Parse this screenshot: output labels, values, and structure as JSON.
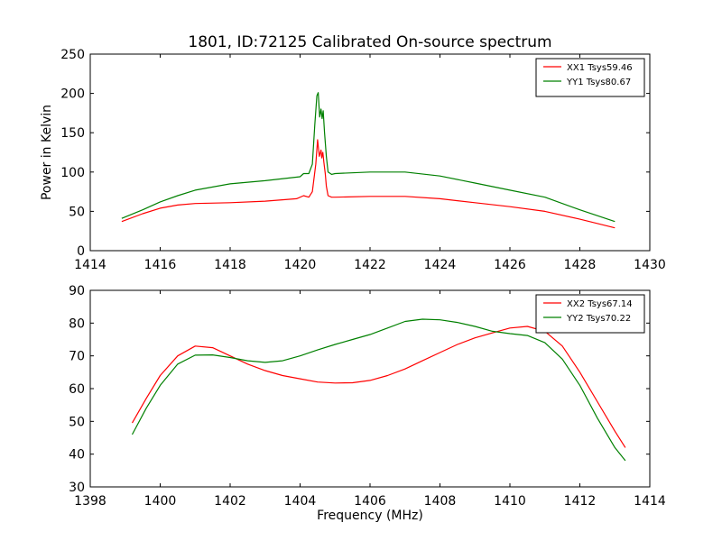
{
  "chart_data": [
    {
      "type": "line",
      "title": "1801, ID:72125 Calibrated On-source spectrum",
      "xlabel": "",
      "ylabel": "Power in Kelvin",
      "xlim": [
        1414,
        1430
      ],
      "ylim": [
        0,
        250
      ],
      "xticks": [
        1414,
        1416,
        1418,
        1420,
        1422,
        1424,
        1426,
        1428,
        1430
      ],
      "yticks": [
        0,
        50,
        100,
        150,
        200,
        250
      ],
      "grid": false,
      "legend_position": "top-right",
      "series": [
        {
          "name": "XX1 Tsys59.46",
          "color": "#ff0000",
          "x": [
            1414.9,
            1415.5,
            1416.0,
            1416.5,
            1417.0,
            1418.0,
            1419.0,
            1419.9,
            1420.1,
            1420.25,
            1420.35,
            1420.45,
            1420.5,
            1420.55,
            1420.6,
            1420.62,
            1420.65,
            1420.68,
            1420.72,
            1420.75,
            1420.8,
            1420.9,
            1421.0,
            1422.0,
            1423.0,
            1424.0,
            1425.0,
            1426.0,
            1427.0,
            1428.0,
            1429.0
          ],
          "y": [
            37,
            47,
            54,
            58,
            60,
            61,
            63,
            66,
            70,
            68,
            75,
            110,
            141,
            120,
            128,
            118,
            125,
            112,
            98,
            82,
            70,
            68,
            68,
            69,
            69,
            66,
            61,
            56,
            50,
            40,
            29
          ]
        },
        {
          "name": "YY1 Tsys80.67",
          "color": "#008000",
          "x": [
            1414.9,
            1415.5,
            1416.0,
            1416.5,
            1417.0,
            1418.0,
            1419.0,
            1420.0,
            1420.1,
            1420.25,
            1420.35,
            1420.42,
            1420.48,
            1420.52,
            1420.56,
            1420.6,
            1420.63,
            1420.66,
            1420.7,
            1420.75,
            1420.8,
            1420.9,
            1421.0,
            1422.0,
            1423.0,
            1424.0,
            1425.0,
            1426.0,
            1427.0,
            1428.0,
            1429.0
          ],
          "y": [
            41,
            52,
            62,
            70,
            77,
            85,
            89,
            94,
            98,
            98,
            110,
            160,
            197,
            201,
            170,
            180,
            168,
            178,
            150,
            120,
            100,
            97,
            98,
            100,
            100,
            95,
            86,
            77,
            68,
            52,
            37
          ]
        }
      ]
    },
    {
      "type": "line",
      "title": "",
      "xlabel": "Frequency (MHz)",
      "ylabel": "",
      "xlim": [
        1398,
        1414
      ],
      "ylim": [
        30,
        90
      ],
      "xticks": [
        1398,
        1400,
        1402,
        1404,
        1406,
        1408,
        1410,
        1412,
        1414
      ],
      "yticks": [
        30,
        40,
        50,
        60,
        70,
        80,
        90
      ],
      "grid": false,
      "legend_position": "top-right",
      "series": [
        {
          "name": "XX2 Tsys67.14",
          "color": "#ff0000",
          "x": [
            1399.2,
            1399.6,
            1400.0,
            1400.5,
            1401.0,
            1401.5,
            1402.0,
            1402.5,
            1403.0,
            1403.5,
            1404.0,
            1404.5,
            1405.0,
            1405.5,
            1406.0,
            1406.5,
            1407.0,
            1407.5,
            1408.0,
            1408.5,
            1409.0,
            1409.5,
            1410.0,
            1410.5,
            1411.0,
            1411.5,
            1412.0,
            1412.5,
            1413.0,
            1413.3
          ],
          "y": [
            49.5,
            57,
            64,
            70,
            73,
            72.5,
            70,
            67.5,
            65.5,
            64,
            63,
            62,
            61.7,
            61.8,
            62.5,
            64,
            66,
            68.5,
            71,
            73.5,
            75.5,
            77,
            78.5,
            79,
            77.5,
            73,
            65,
            56,
            47,
            42
          ]
        },
        {
          "name": "YY2 Tsys70.22",
          "color": "#008000",
          "x": [
            1399.2,
            1399.6,
            1400.0,
            1400.5,
            1401.0,
            1401.5,
            1402.0,
            1402.5,
            1403.0,
            1403.5,
            1404.0,
            1404.5,
            1405.0,
            1405.5,
            1406.0,
            1406.5,
            1407.0,
            1407.5,
            1408.0,
            1408.5,
            1409.0,
            1409.5,
            1410.0,
            1410.5,
            1411.0,
            1411.5,
            1412.0,
            1412.5,
            1413.0,
            1413.3
          ],
          "y": [
            46,
            54,
            61,
            67.5,
            70.2,
            70.3,
            69.5,
            68.5,
            68,
            68.5,
            70,
            71.8,
            73.5,
            75,
            76.5,
            78.5,
            80.5,
            81.2,
            81,
            80.2,
            79,
            77.5,
            76.8,
            76.2,
            74,
            69,
            61,
            51,
            42,
            38
          ]
        }
      ]
    }
  ]
}
